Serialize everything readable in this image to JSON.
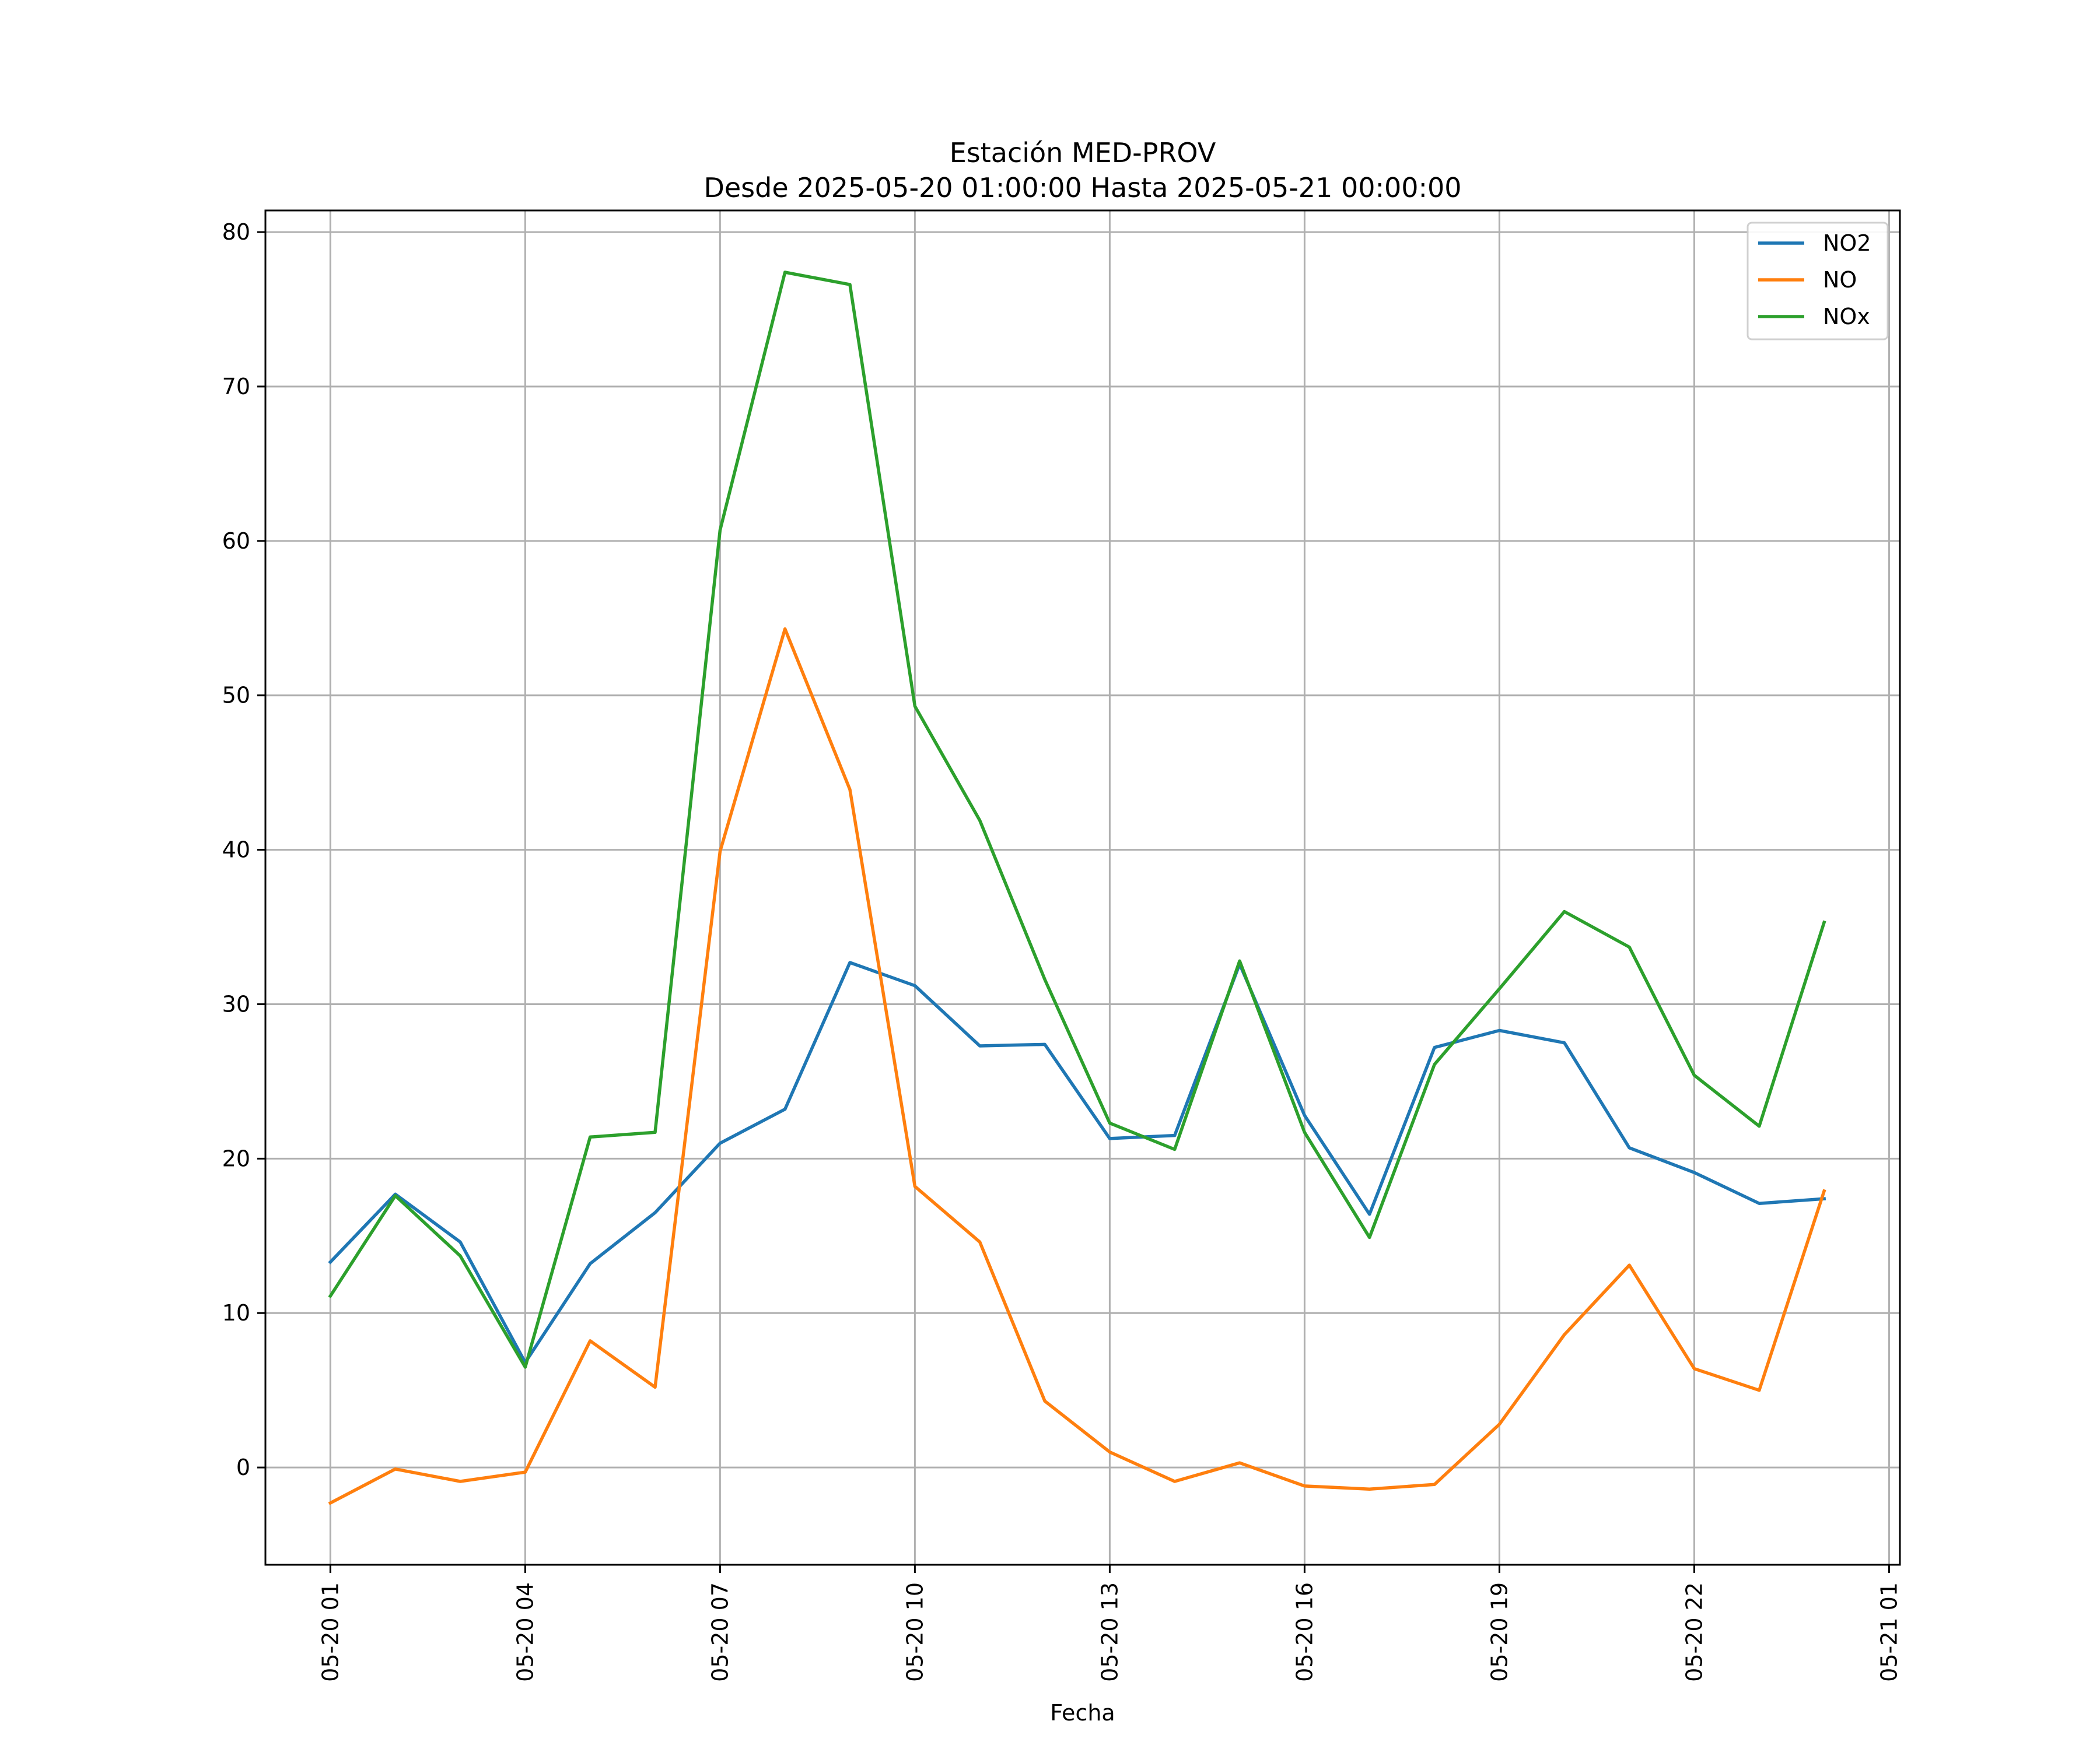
{
  "chart_data": {
    "type": "line",
    "title": "Estación MED-PROV",
    "subtitle": "Desde 2025-05-20 01:00:00 Hasta 2025-05-21 00:00:00",
    "xlabel": "Fecha",
    "ylabel": "",
    "x": [
      "2025-05-20 01:00",
      "2025-05-20 02:00",
      "2025-05-20 03:00",
      "2025-05-20 04:00",
      "2025-05-20 05:00",
      "2025-05-20 06:00",
      "2025-05-20 07:00",
      "2025-05-20 08:00",
      "2025-05-20 09:00",
      "2025-05-20 10:00",
      "2025-05-20 11:00",
      "2025-05-20 12:00",
      "2025-05-20 13:00",
      "2025-05-20 14:00",
      "2025-05-20 15:00",
      "2025-05-20 16:00",
      "2025-05-20 17:00",
      "2025-05-20 18:00",
      "2025-05-20 19:00",
      "2025-05-20 20:00",
      "2025-05-20 21:00",
      "2025-05-20 22:00",
      "2025-05-20 23:00",
      "2025-05-21 00:00"
    ],
    "xlim": [
      "2025-05-20 00:00",
      "2025-05-21 01:10"
    ],
    "ylim": [
      -6.3,
      81.4
    ],
    "x_ticks": [
      "05-20 01",
      "05-20 04",
      "05-20 07",
      "05-20 10",
      "05-20 13",
      "05-20 16",
      "05-20 19",
      "05-20 22",
      "05-21 01"
    ],
    "y_ticks": [
      0,
      10,
      20,
      30,
      40,
      50,
      60,
      70,
      80
    ],
    "grid": true,
    "legend_position": "top-right",
    "series": [
      {
        "name": "NO2",
        "color": "#1f77b4",
        "values": [
          13.3,
          17.7,
          14.6,
          6.8,
          13.2,
          16.5,
          21.0,
          23.2,
          32.7,
          31.2,
          27.3,
          27.4,
          21.3,
          21.5,
          32.6,
          22.8,
          16.4,
          27.2,
          28.3,
          27.5,
          20.7,
          19.1,
          17.1,
          17.4
        ]
      },
      {
        "name": "NO",
        "color": "#ff7f0e",
        "values": [
          -2.3,
          -0.1,
          -0.9,
          -0.3,
          8.2,
          5.2,
          39.9,
          54.3,
          43.9,
          18.2,
          14.6,
          4.3,
          1.0,
          -0.9,
          0.3,
          -1.2,
          -1.4,
          -1.1,
          2.8,
          8.6,
          13.1,
          6.4,
          5.0,
          17.9
        ]
      },
      {
        "name": "NOx",
        "color": "#2ca02c",
        "values": [
          11.1,
          17.6,
          13.7,
          6.5,
          21.4,
          21.7,
          60.7,
          77.4,
          76.6,
          49.3,
          41.9,
          31.6,
          22.3,
          20.6,
          32.8,
          21.7,
          14.9,
          26.1,
          31.0,
          36.0,
          33.7,
          25.4,
          22.1,
          35.3
        ]
      }
    ]
  }
}
